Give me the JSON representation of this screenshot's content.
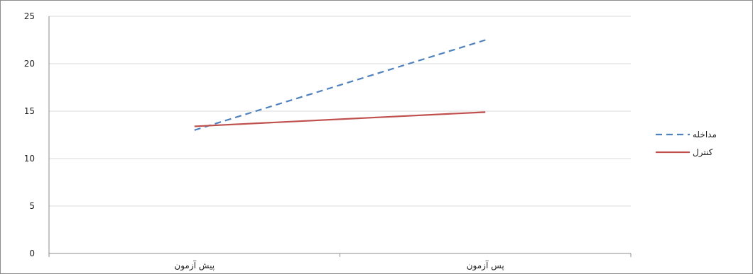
{
  "chart_data": {
    "type": "line",
    "categories": [
      "پیش آزمون",
      "پس آزمون"
    ],
    "series": [
      {
        "name": "مداخله",
        "values": [
          13.0,
          22.5
        ],
        "color": "#4f81bd",
        "dash": "dashed"
      },
      {
        "name": "کنترل",
        "values": [
          13.4,
          14.9
        ],
        "color": "#c0504d",
        "dash": "solid"
      }
    ],
    "ylim": [
      0,
      25
    ],
    "yticks": [
      "0",
      "5",
      "10",
      "15",
      "20",
      "25"
    ],
    "grid": true,
    "legend_position": "right"
  }
}
